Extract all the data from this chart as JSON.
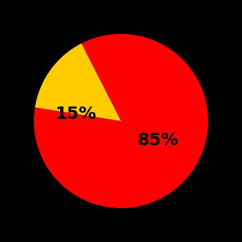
{
  "slices": [
    85,
    15
  ],
  "colors": [
    "#ff0000",
    "#ffcc00"
  ],
  "labels": [
    "85%",
    "15%"
  ],
  "background_color": "#000000",
  "text_color": "#000000",
  "label_fontsize": 18,
  "label_fontweight": "bold",
  "startangle": 117,
  "counterclock": false,
  "wedge_edge_color": "none",
  "label_distances": [
    0.5,
    0.52
  ],
  "label_angles_override": [
    -90,
    155
  ]
}
